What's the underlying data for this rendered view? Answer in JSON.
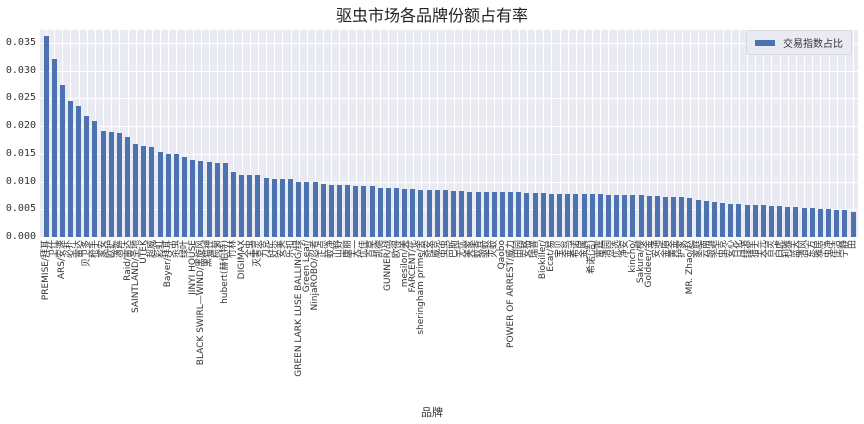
{
  "chart_data": {
    "type": "bar",
    "title": "驱虫市场各品牌份额占有率",
    "xlabel": "品牌",
    "ylabel": "",
    "ylim": [
      0,
      0.037
    ],
    "yticks": [
      "0.000",
      "0.005",
      "0.010",
      "0.015",
      "0.020",
      "0.025",
      "0.030",
      "0.035"
    ],
    "legend": {
      "position": "upper right",
      "entries": [
        "交易指数占比"
      ]
    },
    "grid": true,
    "bar_color": "#4c72b0",
    "background_color": "#eaeaf2",
    "categories": [
      "PREMISE/拜耳",
      "卫仕",
      "ARS/安速",
      "必扑",
      "雷达",
      "贝卫多",
      "枪手",
      "家安",
      "欧护",
      "滴露",
      "Raid/雷达",
      "SAINTLAND/圣地",
      "UTEK",
      "超威",
      "彩虹",
      "Bayer/拜耳",
      "杀虫",
      "绿叶",
      "JINYI HOUSE",
      "BLACK SWIRL—WIND/黑旋风",
      "黑猫神",
      "榄菊",
      "hubert(赫伯特)",
      "竹林",
      "DIGIMAX",
      "全虫",
      "灭害灵",
      "力克",
      "好乐",
      "安美",
      "乐扣",
      "GREEN LARK LUSE BALLING/绿",
      "Green Leaf/",
      "NinjaROBO/忍者",
      "正点",
      "蚊净",
      "山野",
      "康丽",
      "天一",
      "优佳",
      "百草",
      "凯德",
      "GUNNER/战",
      "欧得",
      "mesilon/美",
      "FARCENT/花",
      "sheringham prime/舍",
      "奇安",
      "威克",
      "虫虫",
      "巴斯",
      "无忧",
      "美家",
      "蚊香",
      "驱蚊",
      "灭蚊",
      "Qaobo",
      "POWER OF ARREST/威力",
      "田园",
      "安格",
      "瑞普",
      "Biokiller/",
      "Ecat/易",
      "宝贝",
      "金鸟",
      "希诺",
      "金属",
      "希诺(洁)",
      "雷霆",
      "清园",
      "优选",
      "净安",
      "kincho/",
      "Sakura/樱",
      "Goldeer/金",
      "安通",
      "金盾",
      "黄金",
      "护家",
      "MR. Zhao/赵",
      "家庭",
      "云南",
      "驱避",
      "虫克",
      "安心",
      "日化",
      "绿源",
      "猎手",
      "天元",
      "百灵",
      "白虎",
      "利雅",
      "蓝天",
      "清风",
      "东方",
      "雅居",
      "虫净",
      "佳洁",
      "宁静",
      "田"
    ],
    "series": [
      {
        "name": "交易指数占比",
        "values": [
          0.0362,
          0.0322,
          0.0274,
          0.0246,
          0.0236,
          0.0219,
          0.021,
          0.0192,
          0.0189,
          0.0187,
          0.0181,
          0.0167,
          0.0164,
          0.0162,
          0.0154,
          0.015,
          0.0149,
          0.0145,
          0.0139,
          0.0138,
          0.0136,
          0.0134,
          0.0133,
          0.0118,
          0.0112,
          0.0112,
          0.0112,
          0.0107,
          0.0104,
          0.0104,
          0.0104,
          0.0099,
          0.0099,
          0.0099,
          0.0096,
          0.0094,
          0.0094,
          0.0094,
          0.0092,
          0.0092,
          0.0092,
          0.0089,
          0.0089,
          0.0089,
          0.0087,
          0.0087,
          0.0085,
          0.0085,
          0.0084,
          0.0084,
          0.0083,
          0.0083,
          0.0082,
          0.0082,
          0.0082,
          0.0082,
          0.0081,
          0.0081,
          0.0081,
          0.008,
          0.0079,
          0.0079,
          0.0078,
          0.0078,
          0.0078,
          0.0077,
          0.0077,
          0.0077,
          0.0077,
          0.0076,
          0.0076,
          0.0075,
          0.0075,
          0.0075,
          0.0074,
          0.0074,
          0.0073,
          0.0073,
          0.0072,
          0.0071,
          0.0066,
          0.0065,
          0.0064,
          0.0062,
          0.006,
          0.0059,
          0.0058,
          0.0057,
          0.0057,
          0.0056,
          0.0056,
          0.0055,
          0.0054,
          0.0053,
          0.0052,
          0.0051,
          0.005,
          0.0049,
          0.0048,
          0.0046
        ]
      }
    ]
  }
}
